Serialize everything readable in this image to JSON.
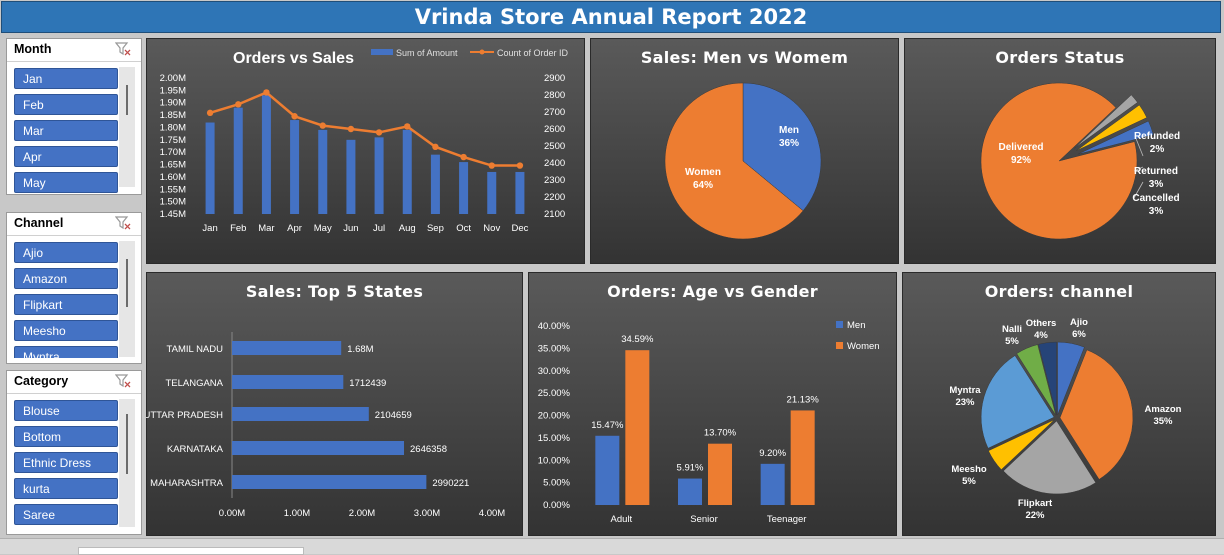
{
  "report_title": "Vrinda Store Annual Report 2022",
  "slicers": {
    "month": {
      "title": "Month",
      "items": [
        "Jan",
        "Feb",
        "Mar",
        "Apr",
        "May"
      ]
    },
    "channel": {
      "title": "Channel",
      "items": [
        "Ajio",
        "Amazon",
        "Flipkart",
        "Meesho",
        "Myntra"
      ]
    },
    "category": {
      "title": "Category",
      "items": [
        "Blouse",
        "Bottom",
        "Ethnic Dress",
        "kurta",
        "Saree"
      ]
    }
  },
  "colors": {
    "blue": "#4472c4",
    "orange": "#ed7d31",
    "gray": "#a5a5a5",
    "yellow": "#ffc000",
    "lightblue": "#5b9bd5",
    "green": "#70ad47",
    "navy": "#264478"
  },
  "chart_data": [
    {
      "id": "orders_vs_sales",
      "type": "bar",
      "title": "Orders vs Sales",
      "categories": [
        "Jan",
        "Feb",
        "Mar",
        "Apr",
        "May",
        "Jun",
        "Jul",
        "Aug",
        "Sep",
        "Oct",
        "Nov",
        "Dec"
      ],
      "series": [
        {
          "name": "Sum of Amount",
          "type": "bar",
          "axis": "left",
          "values": [
            1.82,
            1.88,
            1.93,
            1.83,
            1.79,
            1.75,
            1.76,
            1.79,
            1.69,
            1.66,
            1.62,
            1.62
          ]
        },
        {
          "name": "Count of Order ID",
          "type": "line",
          "axis": "right",
          "values": [
            2695,
            2745,
            2815,
            2675,
            2620,
            2600,
            2580,
            2615,
            2495,
            2435,
            2385,
            2385
          ]
        }
      ],
      "left_axis": {
        "min": 1.45,
        "max": 2.0,
        "ticks": [
          "1.45M",
          "1.50M",
          "1.55M",
          "1.60M",
          "1.65M",
          "1.70M",
          "1.75M",
          "1.80M",
          "1.85M",
          "1.90M",
          "1.95M",
          "2.00M"
        ]
      },
      "right_axis": {
        "min": 2100,
        "max": 2900,
        "ticks": [
          "2100",
          "2200",
          "2300",
          "2400",
          "2500",
          "2600",
          "2700",
          "2800",
          "2900"
        ]
      },
      "legend": "top"
    },
    {
      "id": "sales_men_women",
      "type": "pie",
      "title": "Sales: Men vs Womem",
      "slices": [
        {
          "label": "Men",
          "value": 36,
          "text": "36%"
        },
        {
          "label": "Women",
          "value": 64,
          "text": "64%"
        }
      ]
    },
    {
      "id": "orders_status",
      "type": "pie",
      "title": "Orders Status",
      "slices": [
        {
          "label": "Delivered",
          "value": 92,
          "text": "92%"
        },
        {
          "label": "Refunded",
          "value": 2,
          "text": "2%"
        },
        {
          "label": "Returned",
          "value": 3,
          "text": "3%"
        },
        {
          "label": "Cancelled",
          "value": 3,
          "text": "3%"
        }
      ]
    },
    {
      "id": "top5_states",
      "type": "bar",
      "orientation": "horizontal",
      "title": "Sales: Top 5 States",
      "categories": [
        "TAMIL NADU",
        "TELANGANA",
        "UTTAR PRADESH",
        "KARNATAKA",
        "MAHARASHTRA"
      ],
      "values": [
        1680000,
        1712439,
        2104659,
        2646358,
        2990221
      ],
      "data_labels": [
        "1.68M",
        "1712439",
        "2104659",
        "2646358",
        "2990221"
      ],
      "x_ticks": [
        "0.00M",
        "1.00M",
        "2.00M",
        "3.00M",
        "4.00M"
      ],
      "xlim": [
        0,
        4000000
      ]
    },
    {
      "id": "age_vs_gender",
      "type": "bar",
      "title": "Orders: Age vs Gender",
      "categories": [
        "Adult",
        "Senior",
        "Teenager"
      ],
      "series": [
        {
          "name": "Men",
          "values": [
            15.47,
            5.91,
            9.2
          ],
          "labels": [
            "15.47%",
            "5.91%",
            "9.20%"
          ]
        },
        {
          "name": "Women",
          "values": [
            34.59,
            13.7,
            21.13
          ],
          "labels": [
            "34.59%",
            "13.70%",
            "21.13%"
          ]
        }
      ],
      "y_ticks": [
        "0.00%",
        "5.00%",
        "10.00%",
        "15.00%",
        "20.00%",
        "25.00%",
        "30.00%",
        "35.00%",
        "40.00%"
      ],
      "ylim": [
        0,
        40
      ],
      "legend": "right"
    },
    {
      "id": "orders_channel",
      "type": "pie",
      "title": "Orders: channel",
      "slices": [
        {
          "label": "Ajio",
          "value": 6,
          "text": "6%"
        },
        {
          "label": "Amazon",
          "value": 35,
          "text": "35%"
        },
        {
          "label": "Flipkart",
          "value": 22,
          "text": "22%"
        },
        {
          "label": "Meesho",
          "value": 5,
          "text": "5%"
        },
        {
          "label": "Myntra",
          "value": 23,
          "text": "23%"
        },
        {
          "label": "Nalli",
          "value": 5,
          "text": "5%"
        },
        {
          "label": "Others",
          "value": 4,
          "text": "4%"
        }
      ]
    }
  ]
}
